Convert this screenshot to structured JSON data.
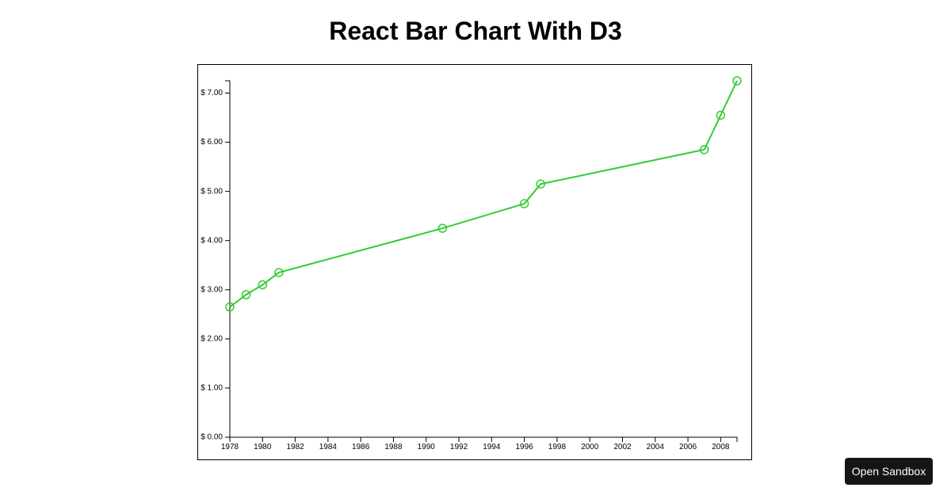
{
  "page": {
    "title": "React Bar Chart With D3",
    "open_sandbox_label": "Open Sandbox"
  },
  "colors": {
    "line": "#33cc33",
    "axis": "#000000",
    "button_bg": "#151515",
    "button_text": "#ffffff"
  },
  "chart_data": {
    "type": "line",
    "title": "",
    "xlabel": "",
    "ylabel": "",
    "x": [
      1978,
      1979,
      1980,
      1981,
      1991,
      1996,
      1997,
      2007,
      2008,
      2009
    ],
    "series": [
      {
        "values": [
          2.65,
          2.9,
          3.1,
          3.35,
          4.25,
          4.75,
          5.15,
          5.85,
          6.55,
          7.25
        ]
      }
    ],
    "xlim": [
      1978,
      2009
    ],
    "ylim": [
      0,
      7.25
    ],
    "x_ticks": [
      "1978",
      "1980",
      "1982",
      "1984",
      "1986",
      "1988",
      "1990",
      "1992",
      "1994",
      "1996",
      "1998",
      "2000",
      "2002",
      "2004",
      "2006",
      "2008"
    ],
    "y_ticks": [
      "$ 0.00",
      "$ 1.00",
      "$ 2.00",
      "$ 3.00",
      "$ 4.00",
      "$ 5.00",
      "$ 6.00",
      "$ 7.00"
    ],
    "y_tick_values": [
      0,
      1,
      2,
      3,
      4,
      5,
      6,
      7
    ],
    "grid": false,
    "markers": "hollow-circle"
  }
}
